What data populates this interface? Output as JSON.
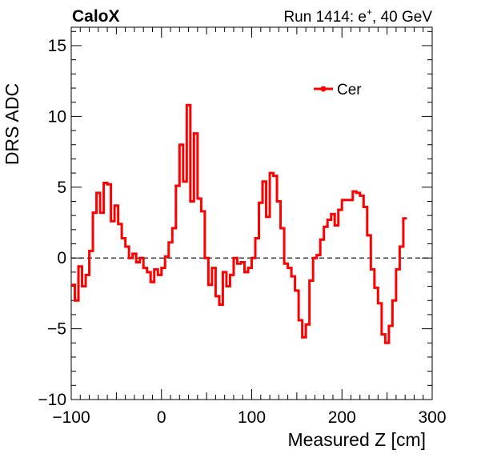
{
  "header": {
    "left": "CaloX",
    "right_prefix": "Run 1414: e",
    "right_sup": "+",
    "right_suffix": ", 40 GeV"
  },
  "chart_data": {
    "type": "line",
    "style": "step histogram",
    "title": "",
    "xlabel": "Measured Z [cm]",
    "ylabel": "DRS ADC",
    "xlim": [
      -100,
      300
    ],
    "ylim": [
      -10,
      16.3
    ],
    "xticks": [
      -100,
      0,
      100,
      200,
      300
    ],
    "xtick_labels": [
      "−100",
      "0",
      "100",
      "200",
      "300"
    ],
    "yticks": [
      -10,
      -5,
      0,
      5,
      10,
      15
    ],
    "ytick_labels": [
      "−10",
      "−5",
      "0",
      "5",
      "10",
      "15"
    ],
    "grid": false,
    "legend_position": "top-right",
    "reference_line": 0,
    "series": [
      {
        "name": "Cer",
        "color": "#ff0000",
        "bin_width": 4,
        "x_start": -100,
        "values": [
          -1.9,
          -3.0,
          -0.6,
          -2.0,
          -1.2,
          0.5,
          3.2,
          4.6,
          3.2,
          5.3,
          5.2,
          2.6,
          3.7,
          2.4,
          1.4,
          0.8,
          0.0,
          0.3,
          -0.3,
          0.0,
          -0.7,
          -1.0,
          -1.7,
          -0.8,
          -1.2,
          -0.7,
          0.1,
          1.1,
          2.1,
          5.1,
          8.0,
          5.4,
          10.8,
          4.0,
          8.8,
          4.2,
          3.3,
          0.0,
          -1.9,
          -0.7,
          -2.7,
          -3.3,
          -1.0,
          -2.0,
          -1.2,
          0.0,
          -0.4,
          -0.3,
          -1.0,
          -0.7,
          0.0,
          1.4,
          3.9,
          5.4,
          2.9,
          6.0,
          5.8,
          4.0,
          2.1,
          -0.4,
          -0.7,
          -1.3,
          -2.3,
          -4.4,
          -5.6,
          -4.7,
          -1.6,
          0.0,
          0.2,
          1.3,
          2.2,
          2.7,
          3.1,
          2.3,
          3.4,
          4.1,
          4.1,
          4.1,
          4.7,
          4.6,
          4.4,
          3.6,
          1.6,
          -0.8,
          -2.1,
          -3.2,
          -5.4,
          -6.0,
          -4.8,
          -3.0,
          -0.8,
          0.8,
          2.8
        ]
      }
    ]
  }
}
